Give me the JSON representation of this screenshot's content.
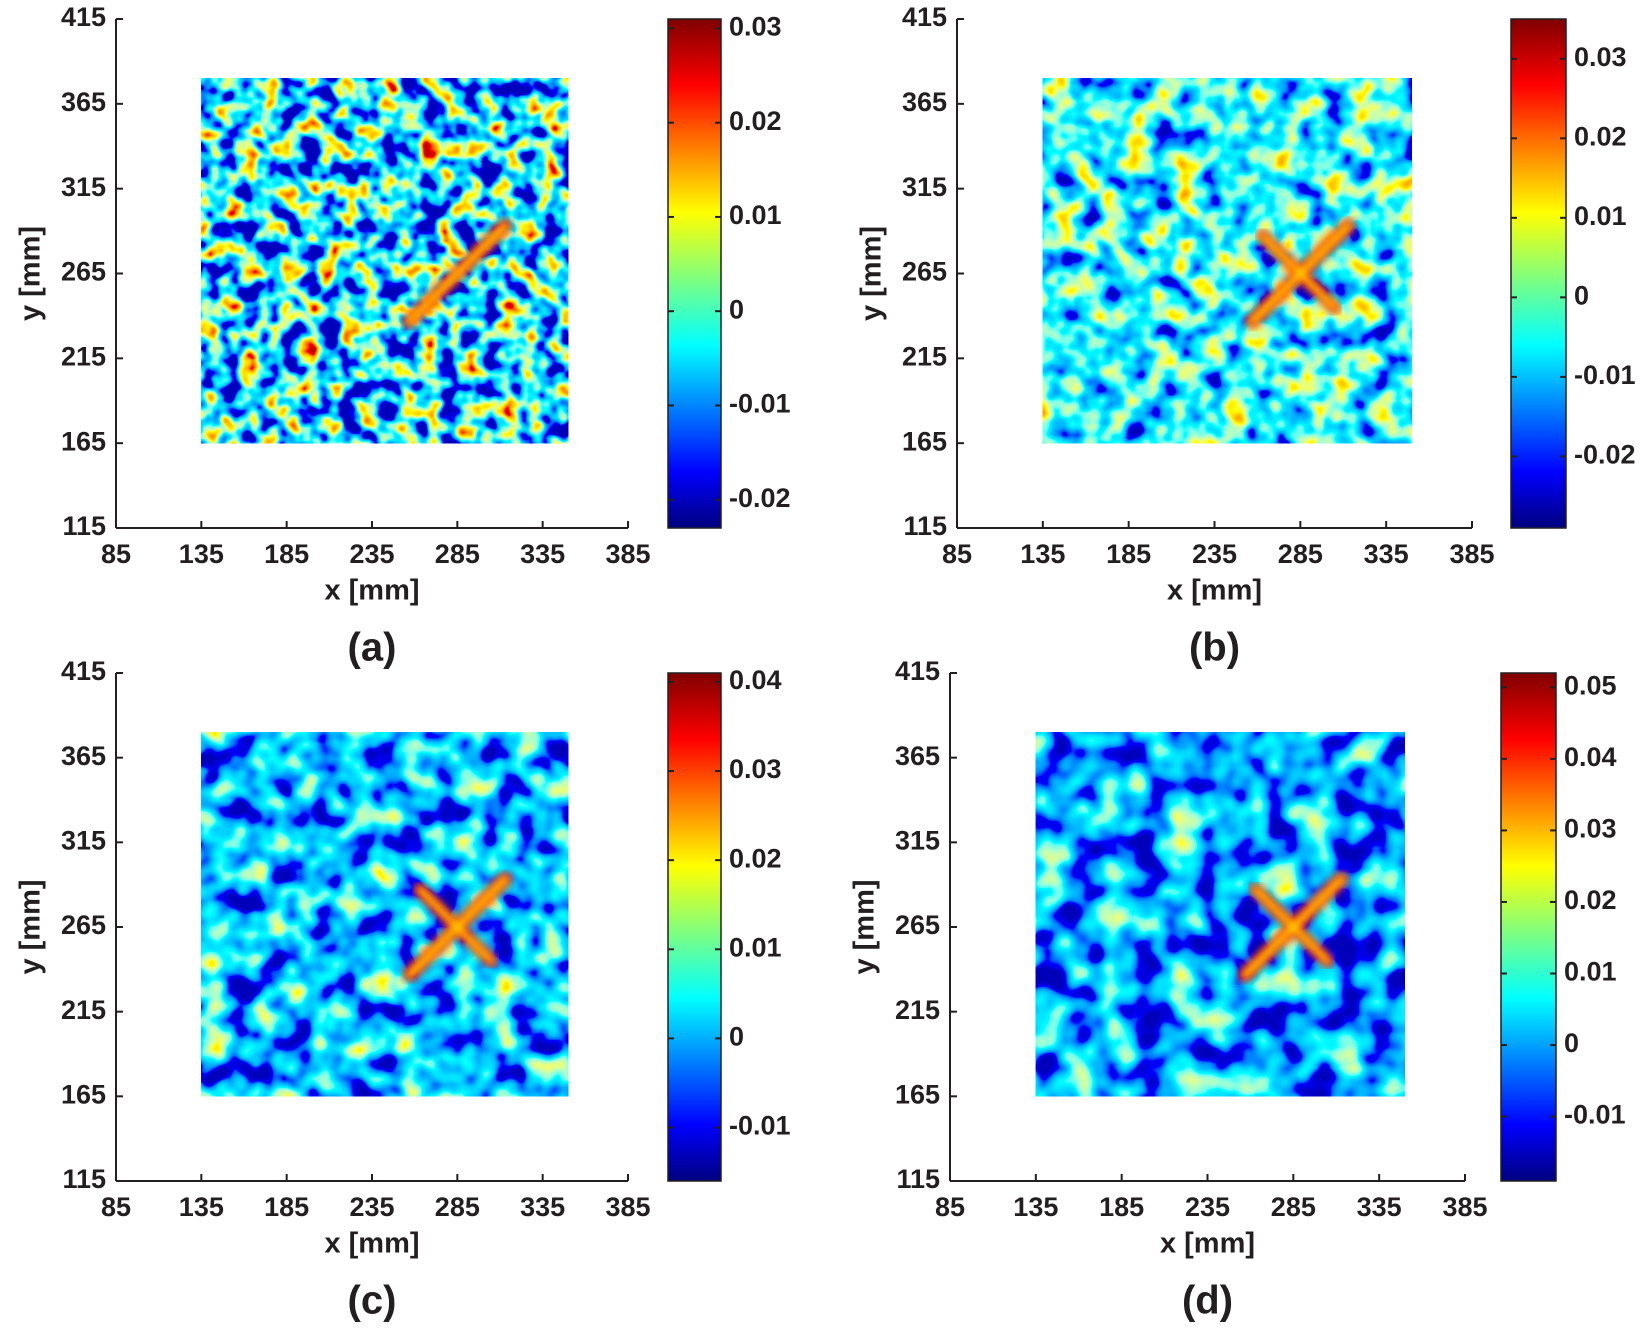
{
  "chart_data": [
    {
      "type": "heatmap",
      "label": "(a)",
      "xlabel": "x [mm]",
      "ylabel": "y [mm]",
      "xlim": [
        85,
        385
      ],
      "ylim": [
        115,
        415
      ],
      "xticks": [
        85,
        135,
        185,
        235,
        285,
        335,
        385
      ],
      "yticks": [
        115,
        165,
        215,
        265,
        315,
        365,
        415
      ],
      "field_xlim": [
        135,
        350
      ],
      "field_ylim": [
        165,
        380
      ],
      "colormap": "jet",
      "clim": [
        -0.023,
        0.031
      ],
      "cticks": [
        -0.02,
        -0.01,
        0,
        0.01,
        0.02,
        0.03
      ]
    },
    {
      "type": "heatmap",
      "label": "(b)",
      "xlabel": "x [mm]",
      "ylabel": "y [mm]",
      "xlim": [
        85,
        385
      ],
      "ylim": [
        115,
        415
      ],
      "xticks": [
        85,
        135,
        185,
        235,
        285,
        335,
        385
      ],
      "yticks": [
        115,
        165,
        215,
        265,
        315,
        365,
        415
      ],
      "field_xlim": [
        135,
        350
      ],
      "field_ylim": [
        165,
        380
      ],
      "colormap": "jet",
      "clim": [
        -0.029,
        0.035
      ],
      "cticks": [
        -0.02,
        -0.01,
        0,
        0.01,
        0.02,
        0.03
      ]
    },
    {
      "type": "heatmap",
      "label": "(c)",
      "xlabel": "x [mm]",
      "ylabel": "y [mm]",
      "xlim": [
        85,
        385
      ],
      "ylim": [
        115,
        415
      ],
      "xticks": [
        85,
        135,
        185,
        235,
        285,
        335,
        385
      ],
      "yticks": [
        115,
        165,
        215,
        265,
        315,
        365,
        415
      ],
      "field_xlim": [
        135,
        350
      ],
      "field_ylim": [
        165,
        380
      ],
      "colormap": "jet",
      "clim": [
        -0.016,
        0.041
      ],
      "cticks": [
        -0.01,
        0,
        0.01,
        0.02,
        0.03,
        0.04
      ]
    },
    {
      "type": "heatmap",
      "label": "(d)",
      "xlabel": "x [mm]",
      "ylabel": "y [mm]",
      "xlim": [
        85,
        385
      ],
      "ylim": [
        115,
        415
      ],
      "xticks": [
        85,
        135,
        185,
        235,
        285,
        335,
        385
      ],
      "yticks": [
        115,
        165,
        215,
        265,
        315,
        365,
        415
      ],
      "field_xlim": [
        135,
        350
      ],
      "field_ylim": [
        165,
        380
      ],
      "colormap": "jet",
      "clim": [
        -0.019,
        0.052
      ],
      "cticks": [
        -0.01,
        0,
        0.01,
        0.02,
        0.03,
        0.04,
        0.05
      ]
    }
  ]
}
